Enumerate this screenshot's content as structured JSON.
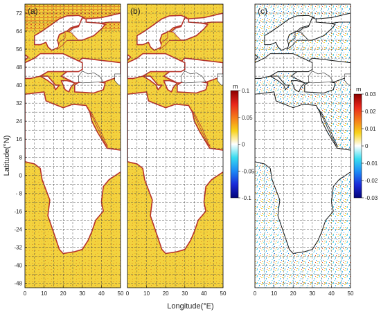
{
  "xlabel": "Longitude(°E)",
  "ylabel": "Latitude(°N)",
  "colors": {
    "frame": "#000000",
    "grid": "#444444",
    "water_main": "#f2d03a",
    "water_alt": "#e8b72a",
    "coast_red": "#c0322a",
    "diff_base": "#ffffff"
  },
  "panels": [
    {
      "label": "(a)",
      "field": "sea_level",
      "xticks": [
        "0",
        "10",
        "20",
        "30",
        "40",
        "50"
      ],
      "yticks": [
        "72",
        "64",
        "56",
        "48",
        "40",
        "32",
        "24",
        "16",
        "8",
        "0",
        "- 8",
        "-16",
        "-24",
        "-32",
        "-40",
        "-48"
      ]
    },
    {
      "label": "(b)",
      "field": "sea_level",
      "xticks": [
        "0",
        "10",
        "20",
        "30",
        "40",
        "50"
      ]
    },
    {
      "label": "(c)",
      "field": "difference",
      "xticks": [
        "0",
        "10",
        "20",
        "30",
        "40",
        "50"
      ]
    }
  ],
  "colorbars": [
    {
      "unit": "m",
      "ticks": [
        "0.1",
        "0.05",
        "0",
        "-0.05",
        "-0.1"
      ],
      "gradient": [
        "#8b0000",
        "#e8261c",
        "#f57a1a",
        "#f8d31a",
        "#ffffff",
        "#38dcf0",
        "#1d8af5",
        "#1a2ad8",
        "#04047a"
      ]
    },
    {
      "unit": "m",
      "ticks": [
        "0.03",
        "0.02",
        "0.01",
        "0",
        "-0.01",
        "-0.02",
        "-0.03"
      ],
      "gradient": [
        "#8b0000",
        "#e8261c",
        "#f57a1a",
        "#f8d31a",
        "#ffffff",
        "#38dcf0",
        "#1d8af5",
        "#1a2ad8",
        "#04047a"
      ]
    }
  ],
  "map_extent": {
    "lon": [
      0,
      50
    ],
    "lat": [
      -50,
      76
    ]
  }
}
